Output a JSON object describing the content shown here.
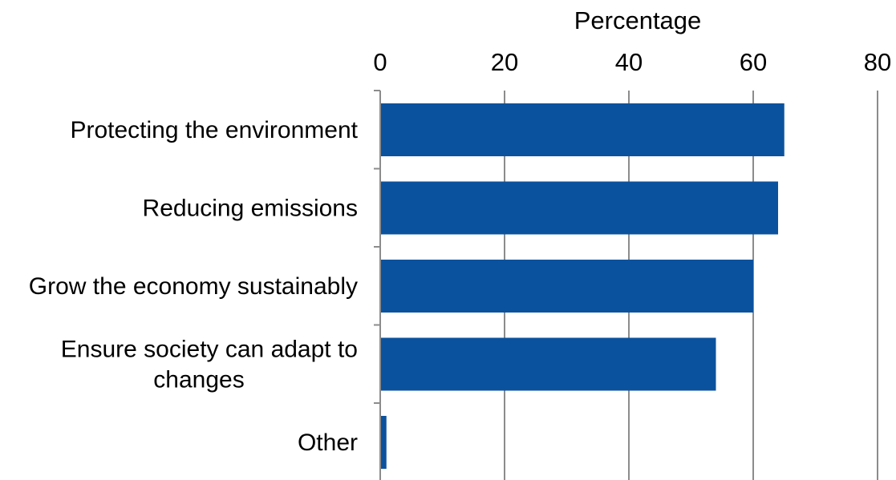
{
  "chart_data": {
    "type": "bar",
    "orientation": "horizontal",
    "title": "",
    "xlabel": "Percentage",
    "ylabel": "",
    "xlim": [
      0,
      80
    ],
    "x_ticks": [
      "0",
      "20",
      "40",
      "60",
      "80"
    ],
    "x_axis_position": "top",
    "grid": true,
    "legend": "none",
    "categories": [
      [
        "Protecting the environment"
      ],
      [
        "Reducing emissions"
      ],
      [
        "Grow the economy sustainably"
      ],
      [
        "Ensure society can adapt to",
        "changes"
      ],
      [
        "Other"
      ]
    ],
    "values": [
      65,
      64,
      60,
      54,
      1
    ],
    "bar_color": "#0b529e",
    "grid_color": "#8c8c8c"
  }
}
